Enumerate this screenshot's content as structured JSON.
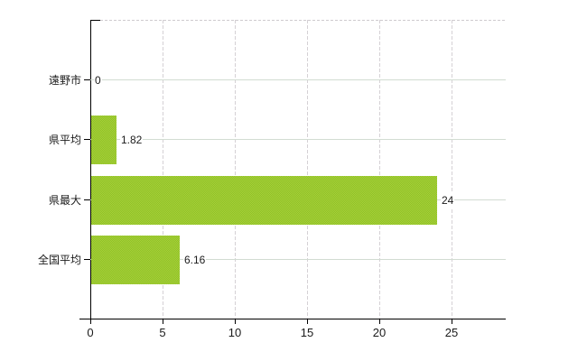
{
  "chart_data": {
    "type": "bar",
    "orientation": "horizontal",
    "title": "",
    "xlabel": "",
    "ylabel": "",
    "categories": [
      "遠野市",
      "県平均",
      "県最大",
      "全国平均"
    ],
    "values": [
      0,
      1.82,
      24,
      6.16
    ],
    "value_labels": [
      "0",
      "1.82",
      "24",
      "6.16"
    ],
    "xticks": [
      0,
      5,
      10,
      15,
      20,
      25
    ],
    "xtick_labels": [
      "0",
      "5",
      "10",
      "15",
      "20",
      "25"
    ],
    "xlim": [
      0,
      28.75
    ],
    "legend_visible": false,
    "gridlines": {
      "horizontal": "solid",
      "vertical": "dashed",
      "top_border": "dashed"
    },
    "colors": {
      "bar": "#9bc92f",
      "bar_dither_light": "#aacd3c",
      "bar_dither_dark": "#8cc424",
      "axis": "#000000",
      "grid_horizontal": "#d2dcd2",
      "grid_vertical": "#d5d1d5",
      "plot_top_border": "#cfcbcf",
      "text": "#1b1b1b",
      "background": "#ffffff"
    }
  }
}
